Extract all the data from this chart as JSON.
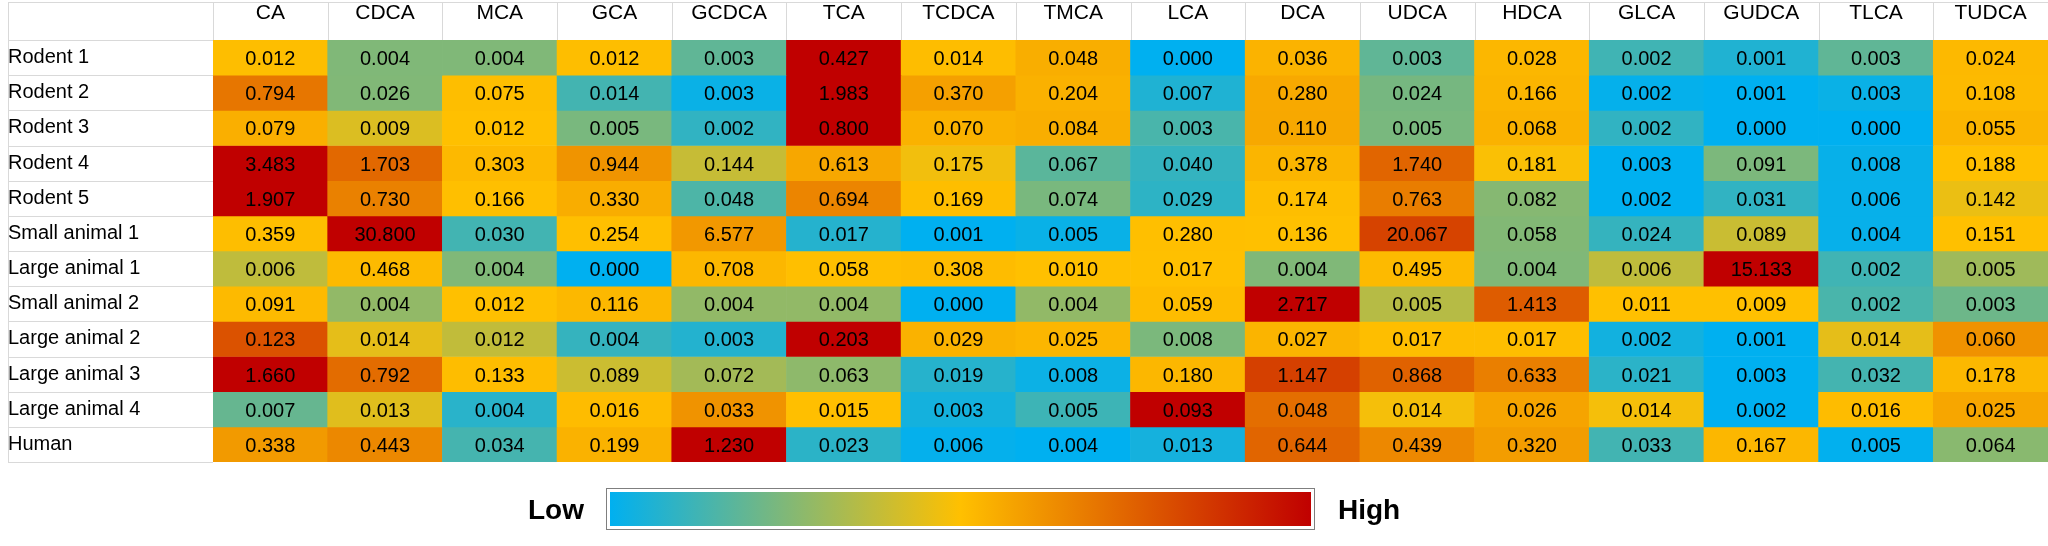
{
  "chart_data": {
    "type": "heatmap",
    "categories": [
      "CA",
      "CDCA",
      "MCA",
      "GCA",
      "GCDCA",
      "TCA",
      "TCDCA",
      "TMCA",
      "LCA",
      "DCA",
      "UDCA",
      "HDCA",
      "GLCA",
      "GUDCA",
      "TLCA",
      "TUDCA"
    ],
    "y_categories": [
      "Rodent 1",
      "Rodent 2",
      "Rodent 3",
      "Rodent 4",
      "Rodent 5",
      "Small animal 1",
      "Large animal 1",
      "Small animal 2",
      "Large animal 2",
      "Large animal 3",
      "Large animal 4",
      "Human"
    ],
    "cells": [
      [
        0.012,
        0.004,
        0.004,
        0.012,
        0.003,
        0.427,
        0.014,
        0.048,
        0.0,
        0.036,
        0.003,
        0.028,
        0.002,
        0.001,
        0.003,
        0.024
      ],
      [
        0.794,
        0.026,
        0.075,
        0.014,
        0.003,
        1.983,
        0.37,
        0.204,
        0.007,
        0.28,
        0.024,
        0.166,
        0.002,
        0.001,
        0.003,
        0.108
      ],
      [
        0.079,
        0.009,
        0.012,
        0.005,
        0.002,
        0.8,
        0.07,
        0.084,
        0.003,
        0.11,
        0.005,
        0.068,
        0.002,
        0.0,
        0.0,
        0.055
      ],
      [
        3.483,
        1.703,
        0.303,
        0.944,
        0.144,
        0.613,
        0.175,
        0.067,
        0.04,
        0.378,
        1.74,
        0.181,
        0.003,
        0.091,
        0.008,
        0.188
      ],
      [
        1.907,
        0.73,
        0.166,
        0.33,
        0.048,
        0.694,
        0.169,
        0.074,
        0.029,
        0.174,
        0.763,
        0.082,
        0.002,
        0.031,
        0.006,
        0.142
      ],
      [
        0.359,
        30.8,
        0.03,
        0.254,
        6.577,
        0.017,
        0.001,
        0.005,
        0.28,
        0.136,
        20.067,
        0.058,
        0.024,
        0.089,
        0.004,
        0.151
      ],
      [
        0.006,
        0.468,
        0.004,
        0.0,
        0.708,
        0.058,
        0.308,
        0.01,
        0.017,
        0.004,
        0.495,
        0.004,
        0.006,
        15.133,
        0.002,
        0.005
      ],
      [
        0.091,
        0.004,
        0.012,
        0.116,
        0.004,
        0.004,
        0.0,
        0.004,
        0.059,
        2.717,
        0.005,
        1.413,
        0.011,
        0.009,
        0.002,
        0.003
      ],
      [
        0.123,
        0.014,
        0.012,
        0.004,
        0.003,
        0.203,
        0.029,
        0.025,
        0.008,
        0.027,
        0.017,
        0.017,
        0.002,
        0.001,
        0.014,
        0.06
      ],
      [
        1.66,
        0.792,
        0.133,
        0.089,
        0.072,
        0.063,
        0.019,
        0.008,
        0.18,
        1.147,
        0.868,
        0.633,
        0.021,
        0.003,
        0.032,
        0.178
      ],
      [
        0.007,
        0.013,
        0.004,
        0.016,
        0.033,
        0.015,
        0.003,
        0.005,
        0.093,
        0.048,
        0.014,
        0.026,
        0.014,
        0.002,
        0.016,
        0.025
      ],
      [
        0.338,
        0.443,
        0.034,
        0.199,
        1.23,
        0.023,
        0.006,
        0.004,
        0.013,
        0.644,
        0.439,
        0.32,
        0.033,
        0.167,
        0.005,
        0.064
      ]
    ],
    "cell_labels": [
      [
        "0.012",
        "0.004",
        "0.004",
        "0.012",
        "0.003",
        "0.427",
        "0.014",
        "0.048",
        "0.000",
        "0.036",
        "0.003",
        "0.028",
        "0.002",
        "0.001",
        "0.003",
        "0.024"
      ],
      [
        "0.794",
        "0.026",
        "0.075",
        "0.014",
        "0.003",
        "1.983",
        "0.370",
        "0.204",
        "0.007",
        "0.280",
        "0.024",
        "0.166",
        "0.002",
        "0.001",
        "0.003",
        "0.108"
      ],
      [
        "0.079",
        "0.009",
        "0.012",
        "0.005",
        "0.002",
        "0.800",
        "0.070",
        "0.084",
        "0.003",
        "0.110",
        "0.005",
        "0.068",
        "0.002",
        "0.000",
        "0.000",
        "0.055"
      ],
      [
        "3.483",
        "1.703",
        "0.303",
        "0.944",
        "0.144",
        "0.613",
        "0.175",
        "0.067",
        "0.040",
        "0.378",
        "1.740",
        "0.181",
        "0.003",
        "0.091",
        "0.008",
        "0.188"
      ],
      [
        "1.907",
        "0.730",
        "0.166",
        "0.330",
        "0.048",
        "0.694",
        "0.169",
        "0.074",
        "0.029",
        "0.174",
        "0.763",
        "0.082",
        "0.002",
        "0.031",
        "0.006",
        "0.142"
      ],
      [
        "0.359",
        "30.800",
        "0.030",
        "0.254",
        "6.577",
        "0.017",
        "0.001",
        "0.005",
        "0.280",
        "0.136",
        "20.067",
        "0.058",
        "0.024",
        "0.089",
        "0.004",
        "0.151"
      ],
      [
        "0.006",
        "0.468",
        "0.004",
        "0.000",
        "0.708",
        "0.058",
        "0.308",
        "0.010",
        "0.017",
        "0.004",
        "0.495",
        "0.004",
        "0.006",
        "15.133",
        "0.002",
        "0.005"
      ],
      [
        "0.091",
        "0.004",
        "0.012",
        "0.116",
        "0.004",
        "0.004",
        "0.000",
        "0.004",
        "0.059",
        "2.717",
        "0.005",
        "1.413",
        "0.011",
        "0.009",
        "0.002",
        "0.003"
      ],
      [
        "0.123",
        "0.014",
        "0.012",
        "0.004",
        "0.003",
        "0.203",
        "0.029",
        "0.025",
        "0.008",
        "0.027",
        "0.017",
        "0.017",
        "0.002",
        "0.001",
        "0.014",
        "0.060"
      ],
      [
        "1.660",
        "0.792",
        "0.133",
        "0.089",
        "0.072",
        "0.063",
        "0.019",
        "0.008",
        "0.180",
        "1.147",
        "0.868",
        "0.633",
        "0.021",
        "0.003",
        "0.032",
        "0.178"
      ],
      [
        "0.007",
        "0.013",
        "0.004",
        "0.016",
        "0.033",
        "0.015",
        "0.003",
        "0.005",
        "0.093",
        "0.048",
        "0.014",
        "0.026",
        "0.014",
        "0.002",
        "0.016",
        "0.025"
      ],
      [
        "0.338",
        "0.443",
        "0.034",
        "0.199",
        "1.230",
        "0.023",
        "0.006",
        "0.004",
        "0.013",
        "0.644",
        "0.439",
        "0.320",
        "0.033",
        "0.167",
        "0.005",
        "0.064"
      ]
    ],
    "colors": [
      "#00b0f0",
      "#ffc000",
      "#c00000"
    ],
    "annotations": [
      "Low",
      "High"
    ]
  }
}
